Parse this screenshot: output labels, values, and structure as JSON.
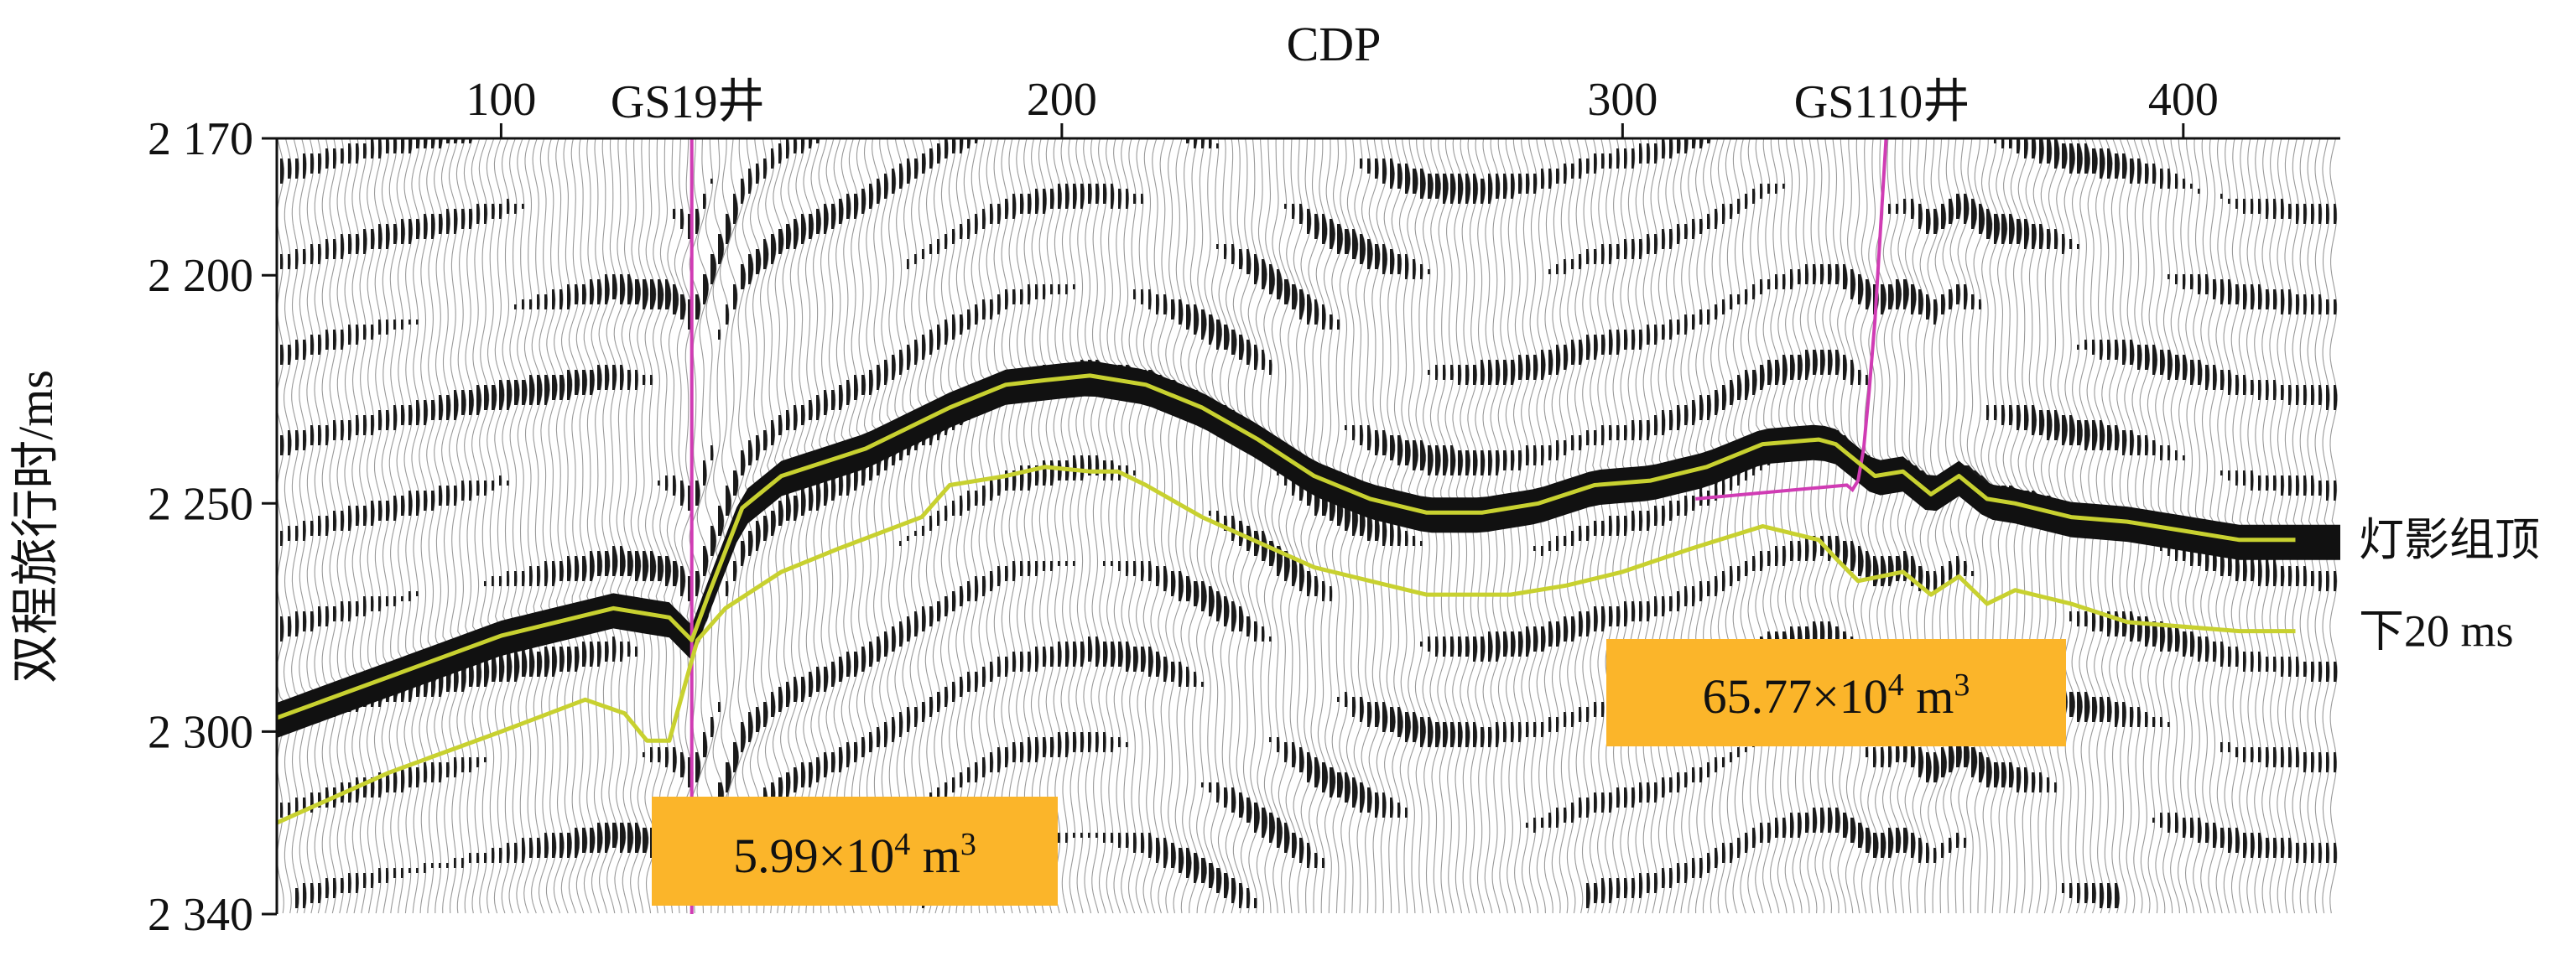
{
  "chart_data": {
    "type": "line",
    "title": "",
    "xlabel": "CDP",
    "ylabel": "双程旅行时/ms",
    "xlim": [
      60,
      428
    ],
    "ylim": [
      2170,
      2340
    ],
    "y_inverted": true,
    "x_ticks": [
      100,
      200,
      300,
      400
    ],
    "x_tick_labels": [
      "100",
      "200",
      "300",
      "400"
    ],
    "y_ticks": [
      2170,
      2200,
      2250,
      2300,
      2340
    ],
    "y_tick_labels": [
      "2 170",
      "2 200",
      "2 250",
      "2 300",
      "2 340"
    ],
    "grid": false,
    "background": "seismic wiggle-trace section",
    "series": [
      {
        "name": "灯影组顶",
        "color": "#c8d130",
        "x": [
          60,
          80,
          100,
          120,
          130,
          134,
          137,
          143,
          150,
          165,
          180,
          190,
          197,
          205,
          215,
          225,
          235,
          245,
          255,
          265,
          275,
          285,
          295,
          305,
          315,
          325,
          335,
          338,
          340,
          345,
          350,
          355,
          360,
          365,
          370,
          380,
          390,
          400,
          410,
          420
        ],
        "y": [
          2297,
          2288,
          2279,
          2273,
          2275,
          2280,
          2270,
          2251,
          2244,
          2238,
          2229,
          2224,
          2223,
          2222,
          2224,
          2229,
          2236,
          2244,
          2249,
          2252,
          2252,
          2250,
          2246,
          2245,
          2242,
          2237,
          2236,
          2237,
          2239,
          2244,
          2243,
          2248,
          2244,
          2249,
          2250,
          2253,
          2254,
          2256,
          2258,
          2258
        ]
      },
      {
        "name": "下20 ms",
        "color": "#c8d130",
        "x": [
          60,
          80,
          100,
          115,
          122,
          126,
          130,
          135,
          140,
          150,
          160,
          175,
          180,
          190,
          197,
          205,
          210,
          215,
          225,
          245,
          265,
          280,
          290,
          300,
          312,
          325,
          335,
          338,
          342,
          350,
          355,
          360,
          365,
          370,
          380,
          390,
          400,
          410,
          420
        ],
        "y": [
          2320,
          2309,
          2300,
          2293,
          2296,
          2302,
          2302,
          2280,
          2273,
          2265,
          2260,
          2253,
          2246,
          2244,
          2242,
          2243,
          2243,
          2246,
          2253,
          2264,
          2270,
          2270,
          2268,
          2265,
          2260,
          2255,
          2258,
          2262,
          2267,
          2265,
          2270,
          2266,
          2272,
          2269,
          2272,
          2276,
          2277,
          2278,
          2278
        ]
      }
    ],
    "wells": [
      {
        "name": "GS19井",
        "color": "#d03cb4",
        "x": [
          134,
          134
        ],
        "y": [
          2170,
          2340
        ]
      },
      {
        "name": "GS110井",
        "color": "#d03cb4",
        "x": [
          313,
          340,
          341,
          342,
          343,
          344,
          345,
          347
        ],
        "y": [
          2249,
          2246,
          2247,
          2245,
          2238,
          2225,
          2210,
          2170
        ]
      }
    ],
    "annotations": [
      {
        "text": "5.99×10⁴ m³",
        "x": 123,
        "y": 2322,
        "box_color": "#fbb52a"
      },
      {
        "text": "65.77×10⁴ m³",
        "x": 310,
        "y": 2281,
        "box_color": "#fbb52a"
      }
    ]
  }
}
